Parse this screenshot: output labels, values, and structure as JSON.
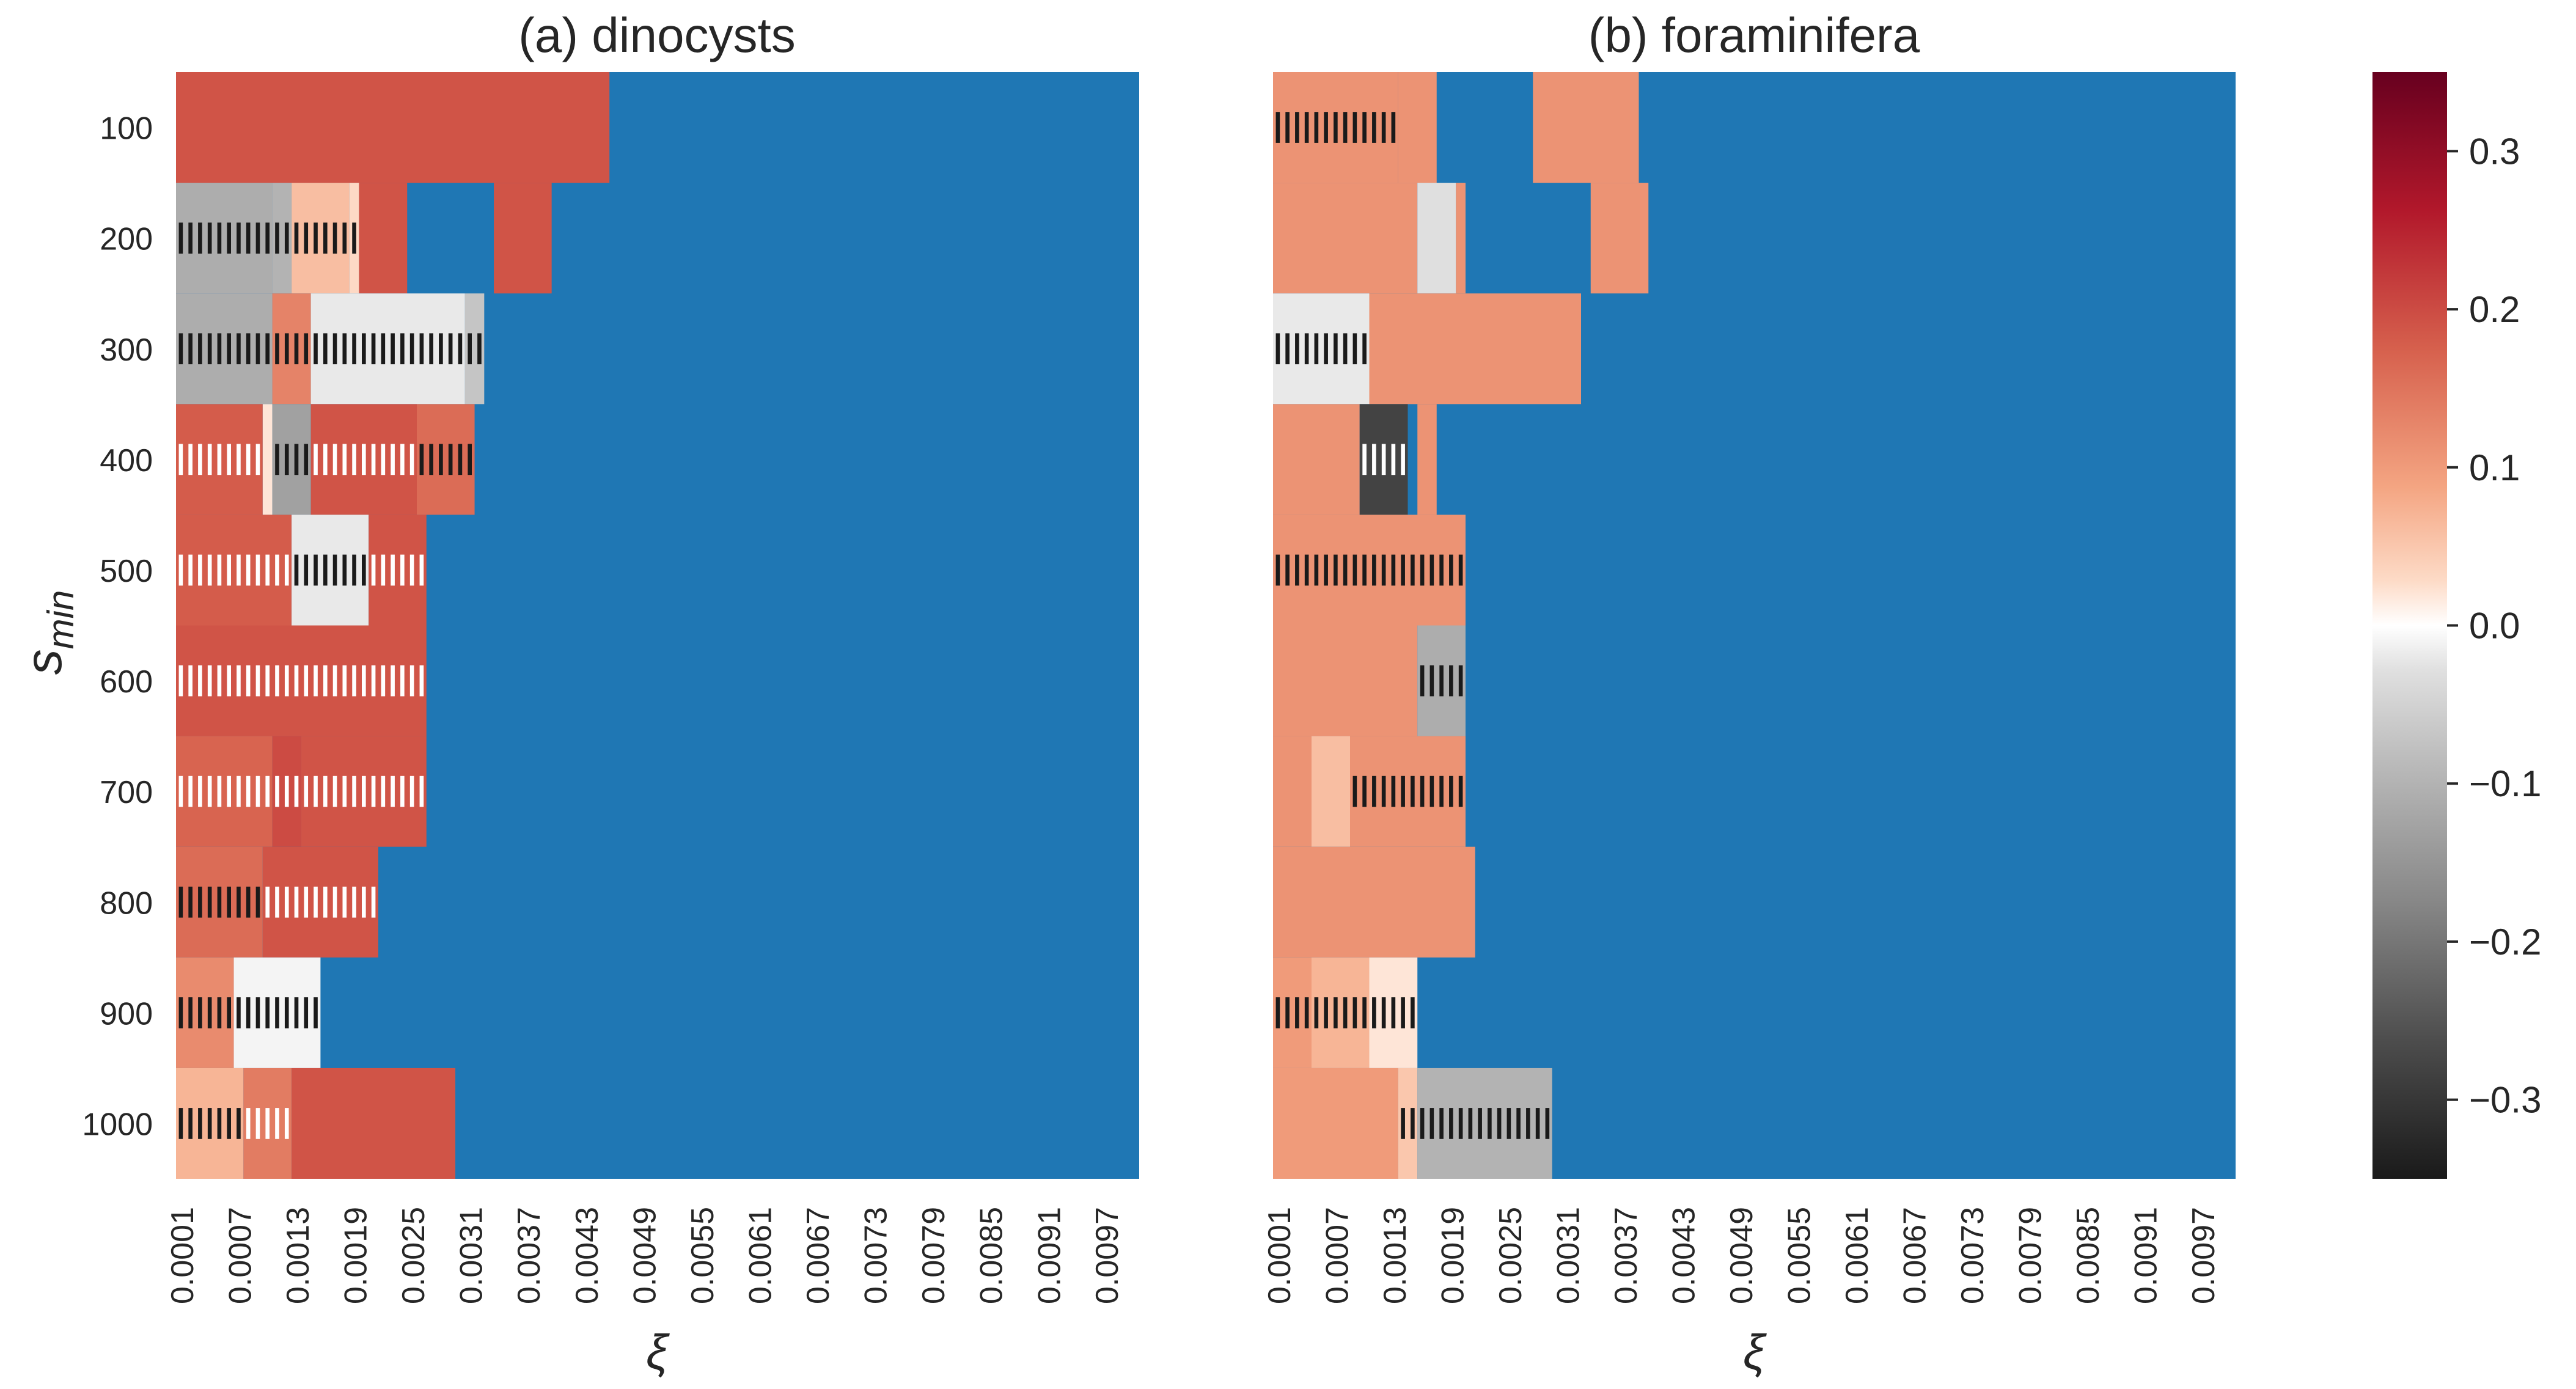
{
  "chart_data": [
    {
      "type": "heatmap",
      "title": "(a) dinocysts",
      "xlabel": "ξ",
      "ylabel_base": "s",
      "ylabel_sub": "min",
      "x_tick_labels": [
        "0.0001",
        "0.0007",
        "0.0013",
        "0.0019",
        "0.0025",
        "0.0031",
        "0.0037",
        "0.0043",
        "0.0049",
        "0.0055",
        "0.0061",
        "0.0067",
        "0.0073",
        "0.0079",
        "0.0085",
        "0.0091",
        "0.0097"
      ],
      "xi_range": [
        0.0001,
        0.01
      ],
      "xi_step": 0.0001,
      "y_tick_labels": [
        "100",
        "200",
        "300",
        "400",
        "500",
        "600",
        "700",
        "800",
        "900",
        "1000"
      ],
      "y_values": [
        100,
        200,
        300,
        400,
        500,
        600,
        700,
        800,
        900,
        1000
      ],
      "undefined_value_color": "#1f77b4",
      "rows": [
        {
          "s_min": 100,
          "segments": [
            {
              "from": 0.0001,
              "to": 0.0046,
              "value": 0.19
            }
          ]
        },
        {
          "s_min": 200,
          "segments": [
            {
              "from": 0.0001,
              "to": 0.0011,
              "value": -0.11,
              "hatch": "dark"
            },
            {
              "from": 0.0011,
              "to": 0.0013,
              "value": -0.1,
              "hatch": "dark"
            },
            {
              "from": 0.0013,
              "to": 0.0019,
              "value": 0.06,
              "hatch": "dark"
            },
            {
              "from": 0.0019,
              "to": 0.002,
              "value": 0.03,
              "hatch": "dark"
            },
            {
              "from": 0.002,
              "to": 0.0025,
              "value": 0.19
            },
            {
              "from": 0.0034,
              "to": 0.004,
              "value": 0.19
            }
          ]
        },
        {
          "s_min": 300,
          "segments": [
            {
              "from": 0.0001,
              "to": 0.0011,
              "value": -0.11,
              "hatch": "dark"
            },
            {
              "from": 0.0011,
              "to": 0.0015,
              "value": 0.13,
              "hatch": "dark"
            },
            {
              "from": 0.0015,
              "to": 0.0031,
              "value": -0.02,
              "hatch": "dark"
            },
            {
              "from": 0.0031,
              "to": 0.0033,
              "value": -0.07,
              "hatch": "dark"
            }
          ]
        },
        {
          "s_min": 400,
          "segments": [
            {
              "from": 0.0001,
              "to": 0.001,
              "value": 0.18,
              "hatch": "light"
            },
            {
              "from": 0.001,
              "to": 0.0011,
              "value": 0.02
            },
            {
              "from": 0.0011,
              "to": 0.0015,
              "value": -0.13,
              "hatch": "dark"
            },
            {
              "from": 0.0015,
              "to": 0.0026,
              "value": 0.19,
              "hatch": "light"
            },
            {
              "from": 0.0026,
              "to": 0.0032,
              "value": 0.16,
              "hatch": "dark"
            }
          ]
        },
        {
          "s_min": 500,
          "segments": [
            {
              "from": 0.0001,
              "to": 0.0013,
              "value": 0.18,
              "hatch": "light"
            },
            {
              "from": 0.0013,
              "to": 0.0021,
              "value": -0.02,
              "hatch": "dark"
            },
            {
              "from": 0.0021,
              "to": 0.0027,
              "value": 0.19,
              "hatch": "light"
            }
          ]
        },
        {
          "s_min": 600,
          "segments": [
            {
              "from": 0.0001,
              "to": 0.0027,
              "value": 0.19,
              "hatch": "light"
            }
          ]
        },
        {
          "s_min": 700,
          "segments": [
            {
              "from": 0.0001,
              "to": 0.0011,
              "value": 0.17,
              "hatch": "light"
            },
            {
              "from": 0.0011,
              "to": 0.0014,
              "value": 0.2,
              "hatch": "light"
            },
            {
              "from": 0.0014,
              "to": 0.0027,
              "value": 0.19,
              "hatch": "light"
            }
          ]
        },
        {
          "s_min": 800,
          "segments": [
            {
              "from": 0.0001,
              "to": 0.001,
              "value": 0.16,
              "hatch": "dark"
            },
            {
              "from": 0.001,
              "to": 0.0022,
              "value": 0.19,
              "hatch": "light"
            }
          ]
        },
        {
          "s_min": 900,
          "segments": [
            {
              "from": 0.0001,
              "to": 0.0007,
              "value": 0.12,
              "hatch": "dark"
            },
            {
              "from": 0.0007,
              "to": 0.0016,
              "value": -0.01,
              "hatch": "dark"
            }
          ]
        },
        {
          "s_min": 1000,
          "segments": [
            {
              "from": 0.0001,
              "to": 0.0008,
              "value": 0.07,
              "hatch": "dark"
            },
            {
              "from": 0.0008,
              "to": 0.0013,
              "value": 0.14,
              "hatch": "light"
            },
            {
              "from": 0.0013,
              "to": 0.003,
              "value": 0.19
            }
          ]
        }
      ]
    },
    {
      "type": "heatmap",
      "title": "(b) foraminifera",
      "xlabel": "ξ",
      "x_tick_labels": [
        "0.0001",
        "0.0007",
        "0.0013",
        "0.0019",
        "0.0025",
        "0.0031",
        "0.0037",
        "0.0043",
        "0.0049",
        "0.0055",
        "0.0061",
        "0.0067",
        "0.0073",
        "0.0079",
        "0.0085",
        "0.0091",
        "0.0097"
      ],
      "xi_range": [
        0.0001,
        0.01
      ],
      "xi_step": 0.0001,
      "y_values": [
        100,
        200,
        300,
        400,
        500,
        600,
        700,
        800,
        900,
        1000
      ],
      "undefined_value_color": "#1f77b4",
      "rows": [
        {
          "s_min": 100,
          "segments": [
            {
              "from": 0.0001,
              "to": 0.0014,
              "value": 0.11,
              "hatch": "dark"
            },
            {
              "from": 0.0014,
              "to": 0.0018,
              "value": 0.11
            },
            {
              "from": 0.0028,
              "to": 0.0039,
              "value": 0.11
            }
          ]
        },
        {
          "s_min": 200,
          "segments": [
            {
              "from": 0.0001,
              "to": 0.0016,
              "value": 0.11
            },
            {
              "from": 0.0016,
              "to": 0.002,
              "value": -0.03
            },
            {
              "from": 0.002,
              "to": 0.0021,
              "value": 0.11
            },
            {
              "from": 0.0034,
              "to": 0.004,
              "value": 0.11
            }
          ]
        },
        {
          "s_min": 300,
          "segments": [
            {
              "from": 0.0001,
              "to": 0.0011,
              "value": -0.02,
              "hatch": "dark"
            },
            {
              "from": 0.0011,
              "to": 0.0033,
              "value": 0.11
            }
          ]
        },
        {
          "s_min": 400,
          "segments": [
            {
              "from": 0.0001,
              "to": 0.001,
              "value": 0.11
            },
            {
              "from": 0.001,
              "to": 0.0015,
              "value": -0.28,
              "hatch": "light"
            },
            {
              "from": 0.0016,
              "to": 0.0018,
              "value": 0.11
            }
          ]
        },
        {
          "s_min": 500,
          "segments": [
            {
              "from": 0.0001,
              "to": 0.0021,
              "value": 0.11,
              "hatch": "dark"
            }
          ]
        },
        {
          "s_min": 600,
          "segments": [
            {
              "from": 0.0001,
              "to": 0.0016,
              "value": 0.11
            },
            {
              "from": 0.0016,
              "to": 0.0021,
              "value": -0.11,
              "hatch": "dark"
            }
          ]
        },
        {
          "s_min": 700,
          "segments": [
            {
              "from": 0.0001,
              "to": 0.0005,
              "value": 0.11
            },
            {
              "from": 0.0005,
              "to": 0.0009,
              "value": 0.06
            },
            {
              "from": 0.0009,
              "to": 0.0021,
              "value": 0.11,
              "hatch": "dark"
            }
          ]
        },
        {
          "s_min": 800,
          "segments": [
            {
              "from": 0.0001,
              "to": 0.0022,
              "value": 0.11
            }
          ]
        },
        {
          "s_min": 900,
          "segments": [
            {
              "from": 0.0001,
              "to": 0.0005,
              "value": 0.1,
              "hatch": "dark"
            },
            {
              "from": 0.0005,
              "to": 0.0011,
              "value": 0.07,
              "hatch": "dark"
            },
            {
              "from": 0.0011,
              "to": 0.0016,
              "value": 0.02,
              "hatch": "dark"
            }
          ]
        },
        {
          "s_min": 1000,
          "segments": [
            {
              "from": 0.0001,
              "to": 0.0014,
              "value": 0.1
            },
            {
              "from": 0.0014,
              "to": 0.0016,
              "value": 0.05,
              "hatch": "dark"
            },
            {
              "from": 0.0016,
              "to": 0.003,
              "value": -0.1,
              "hatch": "dark"
            }
          ]
        }
      ]
    },
    {
      "type": "colorbar",
      "range": [
        -0.35,
        0.35
      ],
      "colormap": "RdGy_r",
      "ticks": [
        0.3,
        0.2,
        0.1,
        0.0,
        -0.1,
        -0.2,
        -0.3
      ],
      "tick_labels": [
        "0.3",
        "0.2",
        "0.1",
        "0.0",
        "−0.1",
        "−0.2",
        "−0.3"
      ]
    }
  ]
}
